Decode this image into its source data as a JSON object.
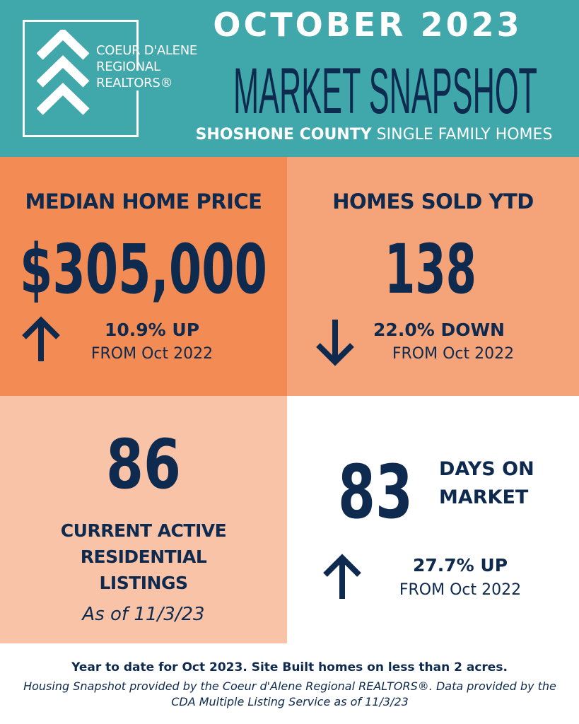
{
  "colors": {
    "teal": "#40a7aa",
    "orange": "#f38b55",
    "light_orange": "#f5a378",
    "peach": "#f8c3a7",
    "navy": "#0e2a4f"
  },
  "logo": {
    "line1": "COEUR D'ALENE",
    "line2": "REGIONAL",
    "line3": "REALTORS®",
    "icon": "chevrons-up-icon"
  },
  "header": {
    "month": "OCTOBER 2023",
    "title": "MARKET SNAPSHOT",
    "county": "SHOSHONE COUNTY",
    "segment": "SINGLE FAMILY HOMES"
  },
  "median": {
    "title": "MEDIAN HOME PRICE",
    "value": "$305,000",
    "change": "10.9% UP",
    "from": "FROM Oct 2022",
    "direction": "up"
  },
  "sold": {
    "title": "HOMES SOLD YTD",
    "value": "138",
    "change": "22.0% DOWN",
    "from": "FROM Oct 2022",
    "direction": "down"
  },
  "active": {
    "value": "86",
    "line1": "CURRENT ACTIVE",
    "line2": "RESIDENTIAL",
    "line3": "LISTINGS",
    "asof": "As of 11/3/23"
  },
  "dom": {
    "value": "83",
    "label1": "DAYS ON",
    "label2": "MARKET",
    "change": "27.7% UP",
    "from": "FROM Oct 2022",
    "direction": "up"
  },
  "footer": {
    "line1": "Year to date for Oct 2023. Site Built homes on less than 2 acres.",
    "line2": "Housing Snapshot provided by the Coeur d'Alene Regional REALTORS®.  Data provided by the CDA Multiple Listing Service as of 11/3/23"
  }
}
